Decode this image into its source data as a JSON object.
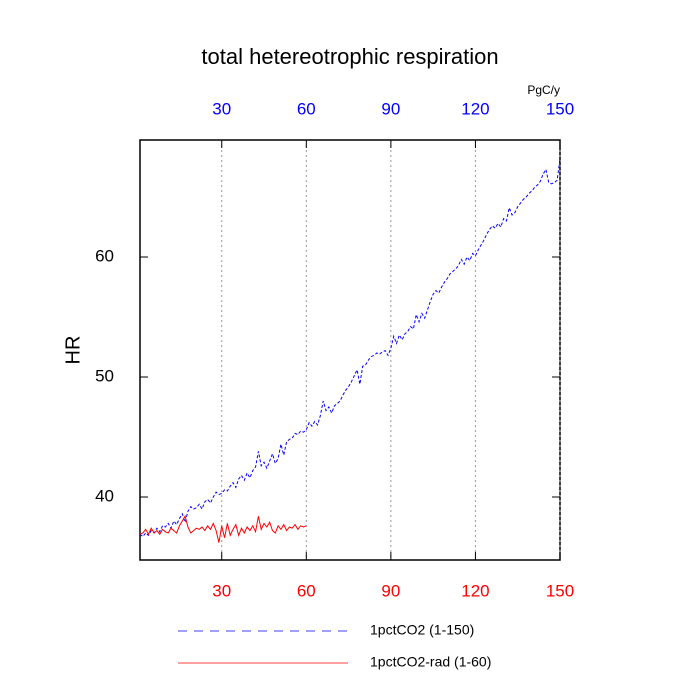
{
  "chart_data": {
    "type": "line",
    "title": "total hetereotrophic respiration",
    "ylabel": "HR",
    "top_axis_label": "PgC/y",
    "xlim": [
      1,
      150
    ],
    "xticks": [
      30,
      60,
      90,
      120,
      150
    ],
    "ylim": [
      34.75,
      69.75
    ],
    "yticks": [
      40,
      50,
      60
    ],
    "grid": true,
    "top_tick_color": "#0000ff",
    "bottom_tick_color": "#ff0000",
    "series": [
      {
        "name": "1pctCO2 (1-150)",
        "color": "#0000ff",
        "dashed": true,
        "x": [
          1,
          2,
          3,
          4,
          5,
          6,
          7,
          8,
          9,
          10,
          11,
          12,
          13,
          14,
          15,
          16,
          17,
          18,
          19,
          20,
          21,
          22,
          23,
          24,
          25,
          26,
          27,
          28,
          29,
          30,
          31,
          32,
          33,
          34,
          35,
          36,
          37,
          38,
          39,
          40,
          41,
          42,
          43,
          44,
          45,
          46,
          47,
          48,
          49,
          50,
          51,
          52,
          53,
          54,
          55,
          56,
          57,
          58,
          59,
          60,
          61,
          62,
          63,
          64,
          65,
          66,
          67,
          68,
          69,
          70,
          71,
          72,
          73,
          74,
          75,
          76,
          77,
          78,
          79,
          80,
          81,
          82,
          83,
          84,
          85,
          86,
          87,
          88,
          89,
          90,
          91,
          92,
          93,
          94,
          95,
          96,
          97,
          98,
          99,
          100,
          101,
          102,
          103,
          104,
          105,
          106,
          107,
          108,
          109,
          110,
          111,
          112,
          113,
          114,
          115,
          116,
          117,
          118,
          119,
          120,
          121,
          122,
          123,
          124,
          125,
          126,
          127,
          128,
          129,
          130,
          131,
          132,
          133,
          134,
          135,
          136,
          137,
          138,
          139,
          140,
          141,
          142,
          143,
          144,
          145,
          146,
          147,
          148,
          149,
          150
        ],
        "values": [
          36.9,
          36.7,
          37.0,
          36.8,
          37.2,
          37.0,
          37.4,
          37.1,
          37.6,
          37.5,
          37.8,
          37.4,
          38.0,
          37.7,
          38.2,
          38.6,
          37.9,
          38.8,
          39.2,
          39.0,
          39.1,
          39.4,
          39.0,
          39.6,
          39.8,
          39.5,
          40.0,
          40.4,
          40.2,
          40.3,
          40.6,
          40.5,
          40.9,
          41.2,
          40.8,
          41.5,
          41.8,
          41.4,
          42.0,
          41.6,
          42.2,
          42.5,
          43.8,
          42.6,
          42.9,
          42.4,
          43.0,
          43.6,
          42.8,
          43.2,
          44.4,
          43.5,
          44.6,
          44.8,
          44.9,
          45.3,
          45.2,
          45.5,
          45.4,
          45.6,
          46.2,
          45.9,
          46.3,
          46.0,
          46.8,
          48.0,
          47.2,
          47.5,
          47.0,
          47.6,
          47.8,
          48.0,
          48.5,
          48.9,
          49.2,
          49.6,
          50.1,
          50.6,
          49.4,
          50.9,
          51.0,
          51.4,
          51.7,
          51.8,
          52.0,
          51.9,
          52.1,
          52.2,
          51.8,
          52.4,
          53.4,
          52.8,
          53.5,
          53.1,
          53.6,
          53.8,
          54.2,
          54.0,
          55.2,
          54.6,
          55.3,
          54.9,
          55.6,
          56.3,
          56.9,
          57.2,
          57.0,
          57.5,
          57.9,
          58.2,
          58.6,
          58.8,
          59.0,
          59.3,
          59.8,
          59.4,
          60.0,
          59.7,
          60.3,
          60.1,
          60.6,
          61.0,
          61.4,
          61.9,
          62.3,
          62.6,
          62.4,
          62.8,
          62.5,
          63.2,
          63.0,
          64.1,
          63.5,
          63.7,
          64.2,
          64.5,
          64.8,
          65.0,
          65.3,
          65.5,
          65.8,
          66.0,
          66.3,
          66.9,
          67.3,
          66.2,
          66.1,
          66.2,
          66.4,
          68.2
        ]
      },
      {
        "name": "1pctCO2-rad (1-60)",
        "color": "#ff0000",
        "dashed": false,
        "x": [
          1,
          2,
          3,
          4,
          5,
          6,
          7,
          8,
          9,
          10,
          11,
          12,
          13,
          14,
          15,
          16,
          17,
          18,
          19,
          20,
          21,
          22,
          23,
          24,
          25,
          26,
          27,
          28,
          29,
          30,
          31,
          32,
          33,
          34,
          35,
          36,
          37,
          38,
          39,
          40,
          41,
          42,
          43,
          44,
          45,
          46,
          47,
          48,
          49,
          50,
          51,
          52,
          53,
          54,
          55,
          56,
          57,
          58,
          59,
          60
        ],
        "values": [
          36.9,
          37.0,
          37.3,
          36.9,
          37.4,
          37.0,
          37.2,
          36.9,
          37.3,
          37.1,
          37.0,
          37.4,
          37.2,
          37.0,
          37.6,
          38.0,
          38.4,
          37.5,
          37.0,
          37.2,
          37.4,
          37.3,
          37.5,
          37.2,
          37.6,
          37.3,
          37.8,
          37.2,
          36.2,
          37.6,
          36.6,
          37.8,
          36.8,
          37.3,
          37.7,
          36.8,
          37.4,
          37.0,
          37.5,
          37.2,
          37.6,
          37.1,
          38.4,
          37.3,
          37.8,
          37.5,
          37.9,
          37.2,
          37.0,
          37.6,
          37.3,
          37.7,
          37.2,
          37.5,
          37.4,
          37.7,
          37.3,
          37.6,
          37.5,
          37.6
        ]
      }
    ]
  }
}
